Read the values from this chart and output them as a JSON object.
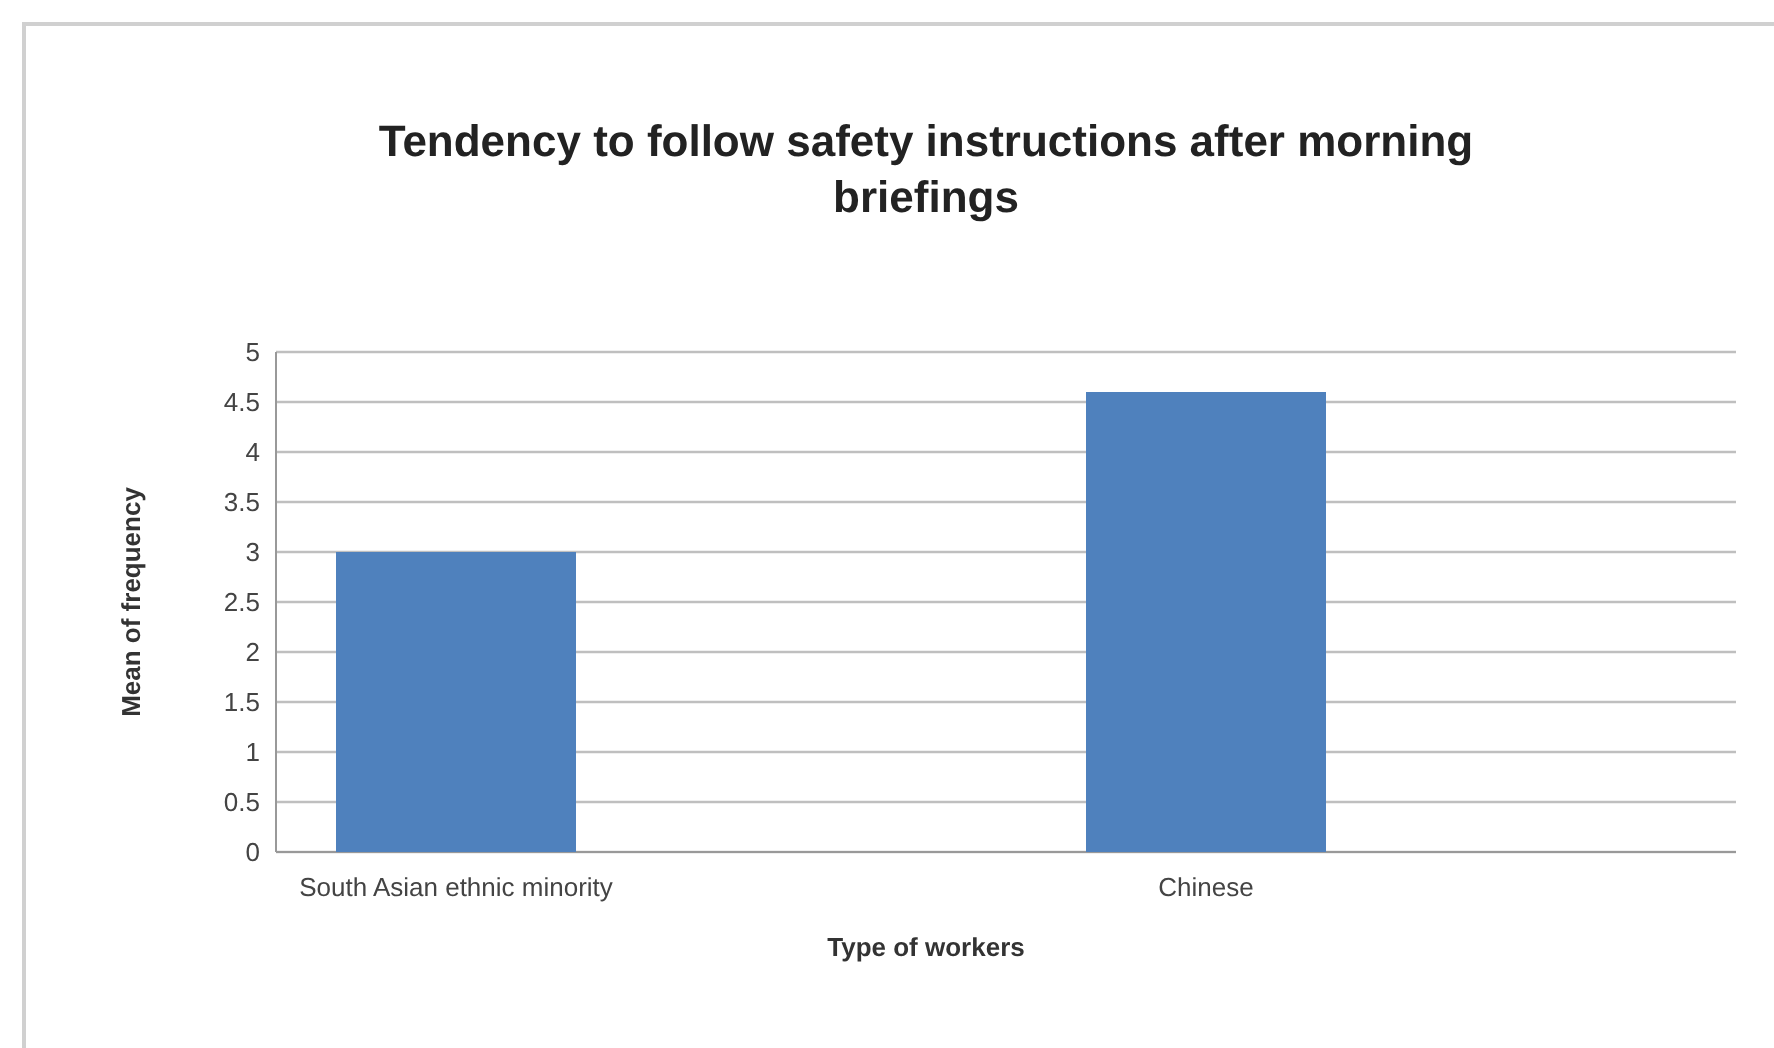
{
  "chart_data": {
    "type": "bar",
    "title": "Tendency to follow safety instructions after morning briefings",
    "xlabel": "Type of workers",
    "ylabel": "Mean of frequency",
    "categories": [
      "South Asian ethnic minority",
      "Chinese"
    ],
    "values": [
      3,
      4.6
    ],
    "color": "#4f81bd",
    "ylim": [
      0,
      5
    ],
    "yticks": [
      0,
      0.5,
      1,
      1.5,
      2,
      2.5,
      3,
      3.5,
      4,
      4.5,
      5
    ],
    "grid": "y"
  }
}
